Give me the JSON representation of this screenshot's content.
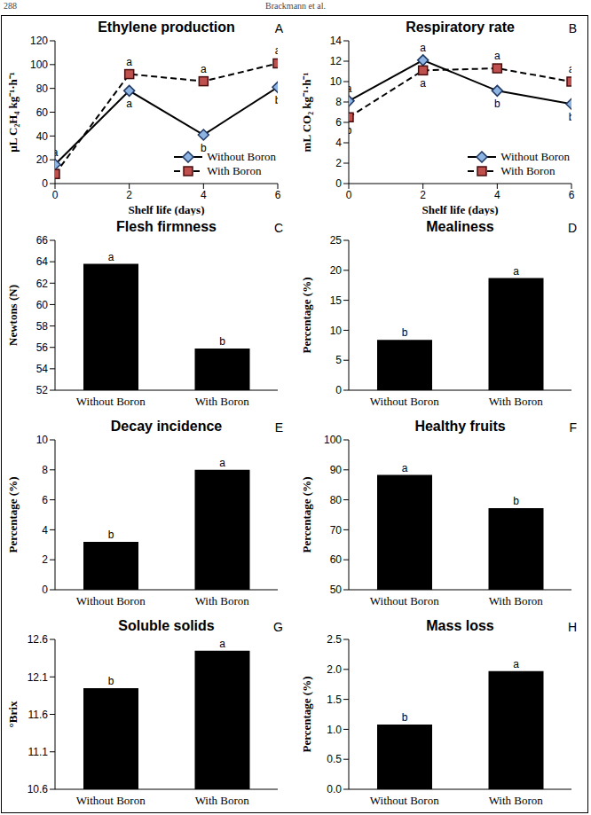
{
  "header": {
    "page": "288",
    "running_head": "Brackmann et al."
  },
  "chart_data": [
    {
      "type": "line",
      "panel_label": "A",
      "title": "Ethylene production",
      "x_label": "Shelf life (days)",
      "y_label": "µL C₂H₄ kg⁻¹·h⁻¹",
      "x": [
        0,
        2,
        4,
        6
      ],
      "xlim": [
        0,
        6
      ],
      "xticks": [
        0,
        2,
        4,
        6
      ],
      "ylim": [
        0,
        120
      ],
      "yticks": [
        0,
        20,
        40,
        60,
        80,
        100,
        120
      ],
      "legend": "lower right",
      "series": [
        {
          "name": "Without Boron",
          "color": "#000000",
          "marker": "diamond",
          "line_style": "solid",
          "values": [
            16,
            78,
            41,
            81
          ],
          "annotations": [
            "a",
            "a",
            "b",
            "b"
          ]
        },
        {
          "name": "With Boron",
          "color": "#000000",
          "marker": "square",
          "line_style": "dashed",
          "values": [
            8,
            92,
            86,
            101
          ],
          "annotations": [
            "b",
            "a",
            "a",
            "a"
          ]
        }
      ]
    },
    {
      "type": "line",
      "panel_label": "B",
      "title": "Respiratory rate",
      "x_label": "Shelf life (days)",
      "y_label": "mL CO₂ kg⁻¹·h⁻¹",
      "x": [
        0,
        2,
        4,
        6
      ],
      "xlim": [
        0,
        6
      ],
      "xticks": [
        0,
        2,
        4,
        6
      ],
      "ylim": [
        0,
        14
      ],
      "yticks": [
        0,
        2,
        4,
        6,
        8,
        10,
        12,
        14
      ],
      "legend": "lower right",
      "series": [
        {
          "name": "Without Boron",
          "color": "#000000",
          "marker": "diamond",
          "line_style": "solid",
          "values": [
            8.1,
            12.1,
            9.1,
            7.8
          ],
          "annotations": [
            "a",
            "a",
            "b",
            "b"
          ]
        },
        {
          "name": "With Boron",
          "color": "#000000",
          "marker": "square",
          "line_style": "dashed",
          "values": [
            6.5,
            11.1,
            11.3,
            10.0
          ],
          "annotations": [
            "b",
            "a",
            "a",
            "a"
          ]
        }
      ]
    },
    {
      "type": "bar",
      "panel_label": "C",
      "title": "Flesh firmness",
      "y_label": "Newtons (N)",
      "categories": [
        "Without Boron",
        "With Boron"
      ],
      "values": [
        63.8,
        55.9
      ],
      "annotations": [
        "a",
        "b"
      ],
      "color": "#000000",
      "ylim": [
        52,
        66
      ],
      "yticks": [
        52,
        54,
        56,
        58,
        60,
        62,
        64,
        66
      ]
    },
    {
      "type": "bar",
      "panel_label": "D",
      "title": "Mealiness",
      "y_label": "Percentage (%)",
      "categories": [
        "Without Boron",
        "With Boron"
      ],
      "values": [
        8.4,
        18.7
      ],
      "annotations": [
        "b",
        "a"
      ],
      "color": "#000000",
      "ylim": [
        0,
        25
      ],
      "yticks": [
        0,
        5,
        10,
        15,
        20,
        25
      ]
    },
    {
      "type": "bar",
      "panel_label": "E",
      "title": "Decay incidence",
      "y_label": "Percentage (%)",
      "categories": [
        "Without Boron",
        "With Boron"
      ],
      "values": [
        3.2,
        8.0
      ],
      "annotations": [
        "b",
        "a"
      ],
      "color": "#000000",
      "ylim": [
        0,
        10
      ],
      "yticks": [
        0,
        2,
        4,
        6,
        8,
        10
      ]
    },
    {
      "type": "bar",
      "panel_label": "F",
      "title": "Healthy fruits",
      "y_label": "Percentage (%)",
      "categories": [
        "Without Boron",
        "With Boron"
      ],
      "values": [
        88.3,
        77.2
      ],
      "annotations": [
        "a",
        "b"
      ],
      "color": "#000000",
      "ylim": [
        50,
        100
      ],
      "yticks": [
        50,
        60,
        70,
        80,
        90,
        100
      ]
    },
    {
      "type": "bar",
      "panel_label": "G",
      "title": "Soluble solids",
      "y_label": "°Brix",
      "categories": [
        "Without Boron",
        "With Boron"
      ],
      "values": [
        11.95,
        12.45
      ],
      "annotations": [
        "b",
        "a"
      ],
      "color": "#000000",
      "ylim": [
        10.6,
        12.6
      ],
      "yticks": [
        10.6,
        11.1,
        11.6,
        12.1,
        12.6
      ]
    },
    {
      "type": "bar",
      "panel_label": "H",
      "title": "Mass loss",
      "y_label": "Percentage (%)",
      "categories": [
        "Without Boron",
        "With Boron"
      ],
      "values": [
        1.08,
        1.97
      ],
      "annotations": [
        "b",
        "a"
      ],
      "color": "#000000",
      "ylim": [
        0,
        2.5
      ],
      "yticks": [
        {
          "value": 0,
          "label": "0.0"
        },
        0.5,
        {
          "value": 1,
          "label": "1.0"
        },
        1.5,
        {
          "value": 2,
          "label": "2.0"
        },
        2.5
      ]
    }
  ]
}
